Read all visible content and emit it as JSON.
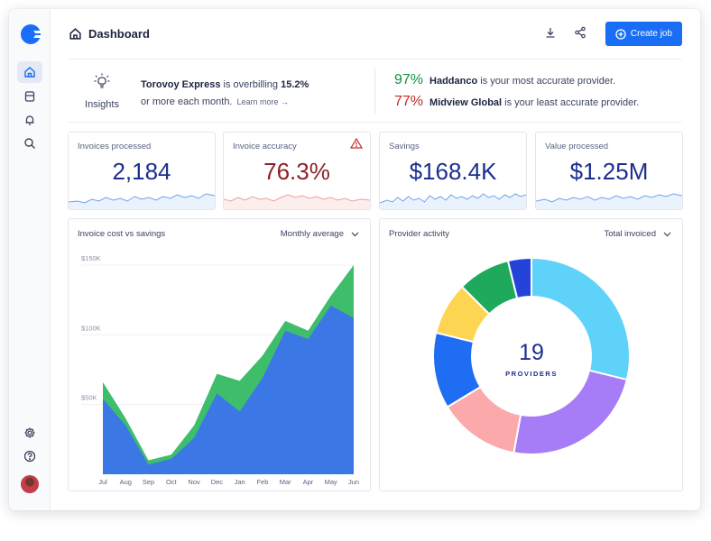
{
  "header": {
    "title": "Dashboard",
    "create_label": "Create job",
    "icons": [
      "home-icon",
      "download-icon",
      "share-icon",
      "plus-circle-icon"
    ]
  },
  "sidebar": {
    "items": [
      "home-icon",
      "inbox-icon",
      "bell-icon",
      "search-icon"
    ],
    "bottom": [
      "settings-icon",
      "help-icon"
    ]
  },
  "insights": {
    "label": "Insights",
    "company": "Torovoy Express",
    "text_mid": " is overbilling ",
    "percent": "15.2%",
    "text_end": "or more each month.",
    "learn_more": "Learn more →",
    "best": {
      "pct": "97%",
      "name": "Haddanco",
      "text": " is your most accurate provider."
    },
    "worst": {
      "pct": "77%",
      "name": "Midview Global",
      "text": " is your least accurate provider."
    }
  },
  "kpis": [
    {
      "label": "Invoices processed",
      "value": "2,184"
    },
    {
      "label": "Invoice accuracy",
      "value": "76.3%"
    },
    {
      "label": "Savings",
      "value": "$168.4K"
    },
    {
      "label": "Value processed",
      "value": "$1.25M"
    }
  ],
  "colors": {
    "accent": "#1a6ef5",
    "kpi_value": "#1c2f8f",
    "kpi_warn": "#8a2226",
    "spark_blue": "#6ea3ea",
    "spark_red": "#ef9ea0",
    "area_green": "#3ebd6a",
    "area_blue": "#3b78e6"
  },
  "panels": {
    "cost": {
      "title": "Invoice cost vs savings",
      "dropdown": "Monthly average"
    },
    "provider": {
      "title": "Provider activity",
      "dropdown": "Total invoiced"
    }
  },
  "chart_data": [
    {
      "type": "area",
      "title": "Invoice cost vs savings",
      "xlabel": "",
      "ylabel": "",
      "ylim": [
        0,
        150000
      ],
      "yticks": [
        "$50K",
        "$100K",
        "$150K"
      ],
      "x": [
        "Jul",
        "Aug",
        "Sep",
        "Oct",
        "Nov",
        "Dec",
        "Jan",
        "Feb",
        "Mar",
        "Apr",
        "May",
        "Jun"
      ],
      "grid": true,
      "series": [
        {
          "color": "#3ebd6a",
          "values": [
            66000,
            40000,
            10000,
            14000,
            35000,
            72000,
            67000,
            85000,
            110000,
            103000,
            128000,
            150000
          ]
        },
        {
          "color": "#3b78e6",
          "values": [
            54000,
            35000,
            7000,
            11000,
            26000,
            58000,
            45000,
            69000,
            103000,
            97000,
            121000,
            112000
          ]
        }
      ]
    },
    {
      "type": "pie",
      "title": "Provider activity",
      "center_value": "19",
      "center_label": "PROVIDERS",
      "slices": [
        {
          "value": 30,
          "color": "#5fd2fa"
        },
        {
          "value": 25,
          "color": "#a67df6"
        },
        {
          "value": 14,
          "color": "#fca9ac"
        },
        {
          "value": 13,
          "color": "#1f6df2"
        },
        {
          "value": 9,
          "color": "#fdd552"
        },
        {
          "value": 9,
          "color": "#1fa95c"
        },
        {
          "value": 4,
          "color": "#2444d9"
        }
      ]
    }
  ]
}
